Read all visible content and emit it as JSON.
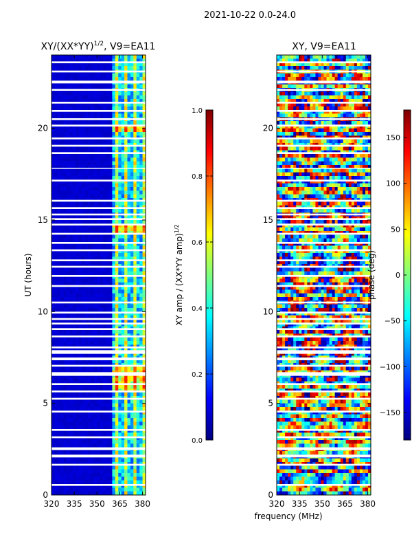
{
  "figure": {
    "suptitle": "2021-10-22 0.0-24.0",
    "xlabel": "frequency (MHz)"
  },
  "colors": {
    "background": "#ffffff",
    "gap": "#ffffff",
    "jet_low": "#00007f",
    "jet_high": "#7f0000"
  },
  "chart_data": [
    {
      "type": "heatmap",
      "title": "XY/(XX*YY)",
      "title_exponent": "1/2",
      "title_suffix": ", V9=EA11",
      "xlabel": "",
      "ylabel": "UT (hours)",
      "xlim": [
        320,
        382
      ],
      "ylim": [
        0,
        24
      ],
      "xticks": [
        320,
        335,
        350,
        365,
        380
      ],
      "yticks": [
        0,
        5,
        10,
        15,
        20
      ],
      "colorbar": {
        "label": "XY amp / (XX*YY amp)",
        "label_exponent": "1/2",
        "range": [
          0.0,
          1.0
        ],
        "ticks": [
          "0.0",
          "0.2",
          "0.4",
          "0.6",
          "0.8",
          "1.0"
        ]
      },
      "description_values": {
        "low_band_MHz": [
          320,
          361
        ],
        "low_band_level": 0.08,
        "high_band_MHz": [
          361,
          382
        ],
        "high_band_level_range": [
          0.2,
          0.75
        ]
      }
    },
    {
      "type": "heatmap",
      "title": "XY, V9=EA11",
      "xlabel": "",
      "ylabel": "",
      "xlim": [
        320,
        382
      ],
      "ylim": [
        0,
        24
      ],
      "xticks": [
        320,
        335,
        350,
        365,
        380
      ],
      "yticks": [
        0,
        5,
        10,
        15,
        20
      ],
      "colorbar": {
        "label": "phase (deg)",
        "range": [
          -180,
          180
        ],
        "ticks": [
          "−150",
          "−100",
          "−50",
          "0",
          "50",
          "100",
          "150"
        ],
        "tick_values": [
          -150,
          -100,
          -50,
          0,
          50,
          100,
          150
        ]
      }
    }
  ],
  "gaps_hours": [
    [
      0.5,
      0.6
    ],
    [
      1.6,
      1.7
    ],
    [
      2.05,
      2.2
    ],
    [
      2.45,
      2.6
    ],
    [
      3.1,
      3.2
    ],
    [
      3.5,
      3.6
    ],
    [
      4.5,
      4.6
    ],
    [
      5.2,
      5.3
    ],
    [
      5.6,
      5.7
    ],
    [
      6.0,
      6.1
    ],
    [
      6.5,
      6.7
    ],
    [
      7.0,
      7.1
    ],
    [
      7.35,
      7.5
    ],
    [
      7.7,
      7.9
    ],
    [
      8.0,
      8.1
    ],
    [
      8.6,
      8.7
    ],
    [
      9.0,
      9.1
    ],
    [
      9.3,
      9.4
    ],
    [
      9.55,
      9.65
    ],
    [
      9.9,
      10.0
    ],
    [
      10.45,
      10.55
    ],
    [
      11.35,
      11.45
    ],
    [
      11.9,
      12.0
    ],
    [
      12.4,
      12.5
    ],
    [
      12.75,
      12.85
    ],
    [
      13.3,
      13.4
    ],
    [
      13.7,
      13.8
    ],
    [
      14.2,
      14.3
    ],
    [
      14.7,
      14.8
    ],
    [
      15.0,
      15.1
    ],
    [
      15.25,
      15.35
    ],
    [
      15.6,
      15.7
    ],
    [
      16.0,
      16.1
    ],
    [
      17.1,
      17.2
    ],
    [
      17.8,
      17.85
    ],
    [
      18.6,
      18.7
    ],
    [
      19.0,
      19.1
    ],
    [
      19.4,
      19.5
    ],
    [
      20.1,
      20.2
    ],
    [
      20.45,
      20.55
    ],
    [
      20.9,
      21.0
    ],
    [
      21.35,
      21.45
    ],
    [
      22.05,
      22.15
    ],
    [
      22.45,
      22.6
    ],
    [
      23.05,
      23.15
    ],
    [
      23.55,
      23.65
    ]
  ]
}
